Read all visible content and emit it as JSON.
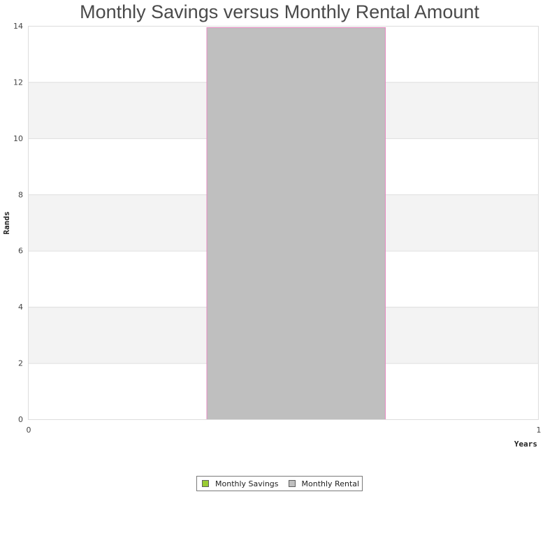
{
  "chart_data": {
    "type": "bar",
    "title": "Monthly Savings versus Monthly Rental Amount",
    "xlabel": "Years",
    "ylabel": "Rands",
    "xlim": [
      0,
      1
    ],
    "ylim": [
      0,
      14
    ],
    "x_ticks": [
      "0",
      "1"
    ],
    "y_ticks": [
      "0",
      "2",
      "4",
      "6",
      "8",
      "10",
      "12",
      "14"
    ],
    "grid": "alternating horizontal bands",
    "legend_position": "bottom-center",
    "series": [
      {
        "name": "Monthly Savings",
        "color": "#99cc33",
        "bars": [
          {
            "x_start": 0.35,
            "x_end": 0.7,
            "value": 0
          }
        ]
      },
      {
        "name": "Monthly Rental",
        "color": "#bfbfbf",
        "border_color": "#e688c0",
        "bars": [
          {
            "x_start": 0.35,
            "x_end": 0.7,
            "value": 13.95
          }
        ]
      }
    ]
  }
}
